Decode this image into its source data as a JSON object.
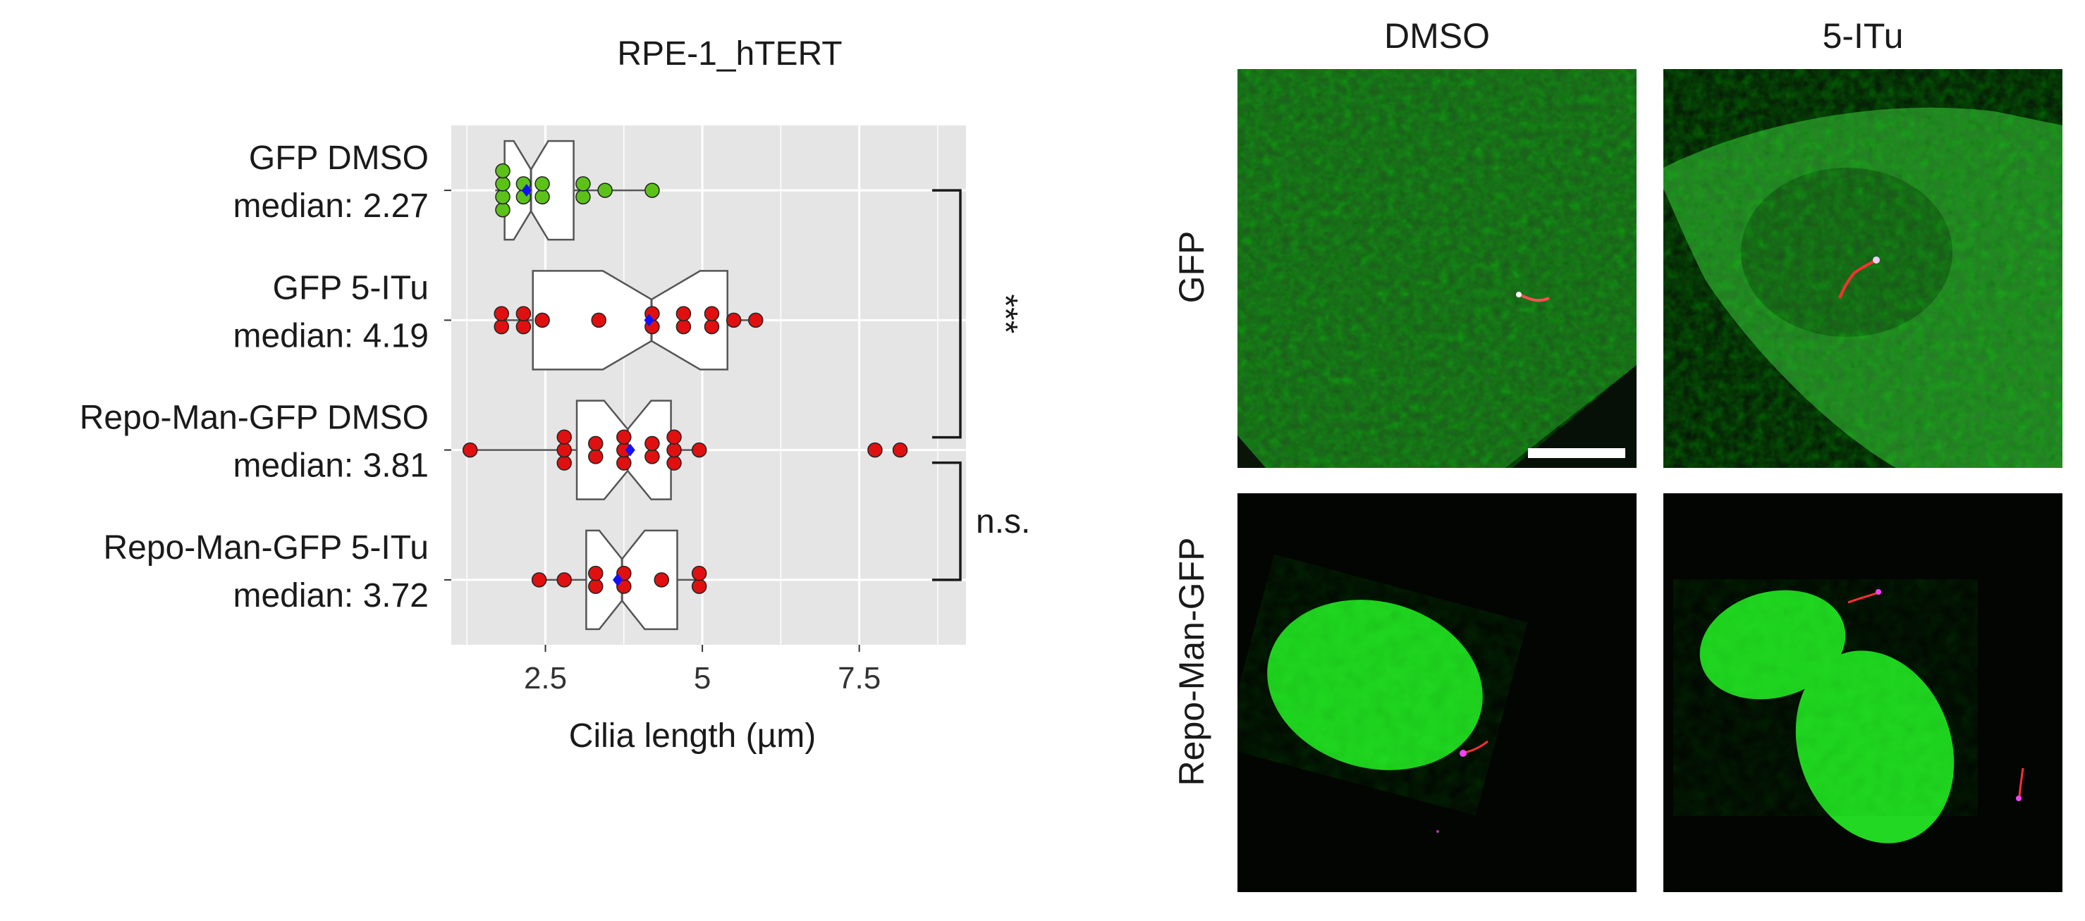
{
  "chart_data": {
    "type": "boxplot",
    "orientation": "horizontal",
    "title": "RPE-1_hTERT",
    "xlabel": "Cilia length (µm)",
    "xlim": [
      1.0,
      9.2
    ],
    "xticks": [
      2.5,
      5,
      7.5
    ],
    "xtick_labels": [
      "2.5",
      "5",
      "7.5"
    ],
    "grid": true,
    "background": "#e5e5e5",
    "groups": [
      {
        "label_line1": "GFP DMSO",
        "label_line2": "median: 2.27",
        "point_color": "#5cc21a",
        "median": 2.27,
        "q1": 1.85,
        "q3": 2.95,
        "whisker_low": 1.7,
        "whisker_high": 4.2,
        "mean": 2.2,
        "points": [
          [
            1.82,
            0.15
          ],
          [
            1.82,
            0.05
          ],
          [
            1.82,
            -0.05
          ],
          [
            1.82,
            -0.15
          ],
          [
            2.15,
            0.05
          ],
          [
            2.15,
            -0.05
          ],
          [
            2.45,
            0.05
          ],
          [
            2.45,
            -0.05
          ],
          [
            3.1,
            0.05
          ],
          [
            3.1,
            -0.05
          ],
          [
            3.45,
            0.0
          ],
          [
            4.2,
            0.0
          ]
        ]
      },
      {
        "label_line1": "GFP 5-ITu",
        "label_line2": "median: 4.19",
        "point_color": "#e01010",
        "median": 4.19,
        "q1": 2.3,
        "q3": 5.4,
        "whisker_low": 1.8,
        "whisker_high": 5.9,
        "mean": 4.15,
        "points": [
          [
            1.8,
            0.05
          ],
          [
            1.8,
            -0.05
          ],
          [
            2.15,
            0.05
          ],
          [
            2.15,
            -0.05
          ],
          [
            2.45,
            0.0
          ],
          [
            3.35,
            0.0
          ],
          [
            4.2,
            0.05
          ],
          [
            4.2,
            -0.05
          ],
          [
            4.7,
            0.05
          ],
          [
            4.7,
            -0.05
          ],
          [
            5.15,
            0.05
          ],
          [
            5.15,
            -0.05
          ],
          [
            5.5,
            0.0
          ],
          [
            5.85,
            0.0
          ]
        ]
      },
      {
        "label_line1": "Repo-Man-GFP DMSO",
        "label_line2": "median: 3.81",
        "point_color": "#e01010",
        "median": 3.81,
        "q1": 3.0,
        "q3": 4.5,
        "whisker_low": 1.3,
        "whisker_high": 5.0,
        "mean": 3.85,
        "points": [
          [
            1.3,
            0.0
          ],
          [
            2.8,
            0.1
          ],
          [
            2.8,
            0.0
          ],
          [
            2.8,
            -0.1
          ],
          [
            3.3,
            0.05
          ],
          [
            3.3,
            -0.05
          ],
          [
            3.75,
            0.1
          ],
          [
            3.75,
            0.0
          ],
          [
            3.75,
            -0.1
          ],
          [
            4.2,
            0.05
          ],
          [
            4.2,
            -0.05
          ],
          [
            4.55,
            0.1
          ],
          [
            4.55,
            0.0
          ],
          [
            4.55,
            -0.1
          ],
          [
            4.95,
            0.0
          ],
          [
            7.75,
            0.0
          ],
          [
            8.15,
            0.0
          ]
        ]
      },
      {
        "label_line1": "Repo-Man-GFP 5-ITu",
        "label_line2": "median: 3.72",
        "point_color": "#e01010",
        "median": 3.72,
        "q1": 3.15,
        "q3": 4.6,
        "whisker_low": 2.4,
        "whisker_high": 4.95,
        "mean": 3.65,
        "points": [
          [
            2.4,
            0.0
          ],
          [
            2.8,
            0.0
          ],
          [
            3.3,
            0.05
          ],
          [
            3.3,
            -0.05
          ],
          [
            3.75,
            0.05
          ],
          [
            3.75,
            -0.05
          ],
          [
            4.35,
            0.0
          ],
          [
            4.95,
            0.05
          ],
          [
            4.95,
            -0.05
          ]
        ]
      }
    ],
    "significance": [
      {
        "groups": [
          0,
          2
        ],
        "label": "***"
      },
      {
        "groups": [
          2,
          3
        ],
        "label": "n.s."
      }
    ]
  },
  "micrographs": {
    "columns": [
      "DMSO",
      "5-ITu"
    ],
    "rows": [
      "GFP",
      "Repo-Man-GFP"
    ]
  }
}
